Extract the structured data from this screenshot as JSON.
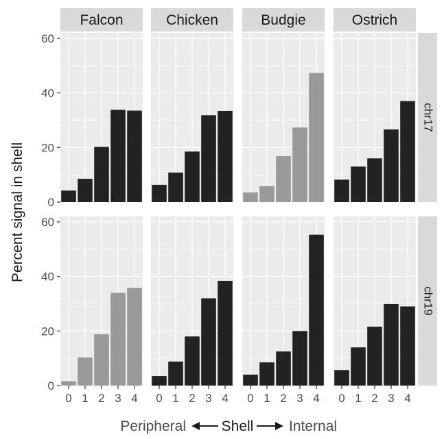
{
  "chart_data": {
    "type": "bar",
    "layout": "facet-grid",
    "columns": [
      "Falcon",
      "Chicken",
      "Budgie",
      "Ostrich"
    ],
    "rows": [
      "chr17",
      "chr19"
    ],
    "categories": [
      "0",
      "1",
      "2",
      "3",
      "4"
    ],
    "y_ticks": [
      "0",
      "20",
      "40",
      "60"
    ],
    "ylim": [
      0,
      62
    ],
    "ylabel": "Percent signal in shell",
    "xlabel": {
      "left": "Peripheral",
      "center": "Shell",
      "right": "Internal"
    },
    "grid": true,
    "colors": {
      "panel_bg": "#ebebeb",
      "grid": "#ffffff",
      "strip_bg": "#d9d9d9",
      "bar_dark": "#222222",
      "bar_light": "#999999",
      "text": "#4d4d4d",
      "title_text": "#1a1a1a"
    },
    "panels": [
      {
        "row": "chr17",
        "col": "Falcon",
        "values": [
          4.2,
          8.5,
          20.2,
          33.8,
          33.5
        ],
        "shade": "dark"
      },
      {
        "row": "chr17",
        "col": "Chicken",
        "values": [
          6.3,
          10.8,
          18.5,
          31.8,
          33.4
        ],
        "shade": "dark"
      },
      {
        "row": "chr17",
        "col": "Budgie",
        "values": [
          3.5,
          5.8,
          16.8,
          27.3,
          47.3
        ],
        "shade": "light"
      },
      {
        "row": "chr17",
        "col": "Ostrich",
        "values": [
          8.2,
          13.0,
          16.0,
          26.6,
          37.0
        ],
        "shade": "dark"
      },
      {
        "row": "chr19",
        "col": "Falcon",
        "values": [
          1.6,
          10.3,
          18.8,
          34.0,
          35.8
        ],
        "shade": "light"
      },
      {
        "row": "chr19",
        "col": "Chicken",
        "values": [
          3.5,
          8.8,
          18.0,
          32.0,
          38.4
        ],
        "shade": "dark"
      },
      {
        "row": "chr19",
        "col": "Budgie",
        "values": [
          4.0,
          8.5,
          12.5,
          20.0,
          55.3
        ],
        "shade": "dark"
      },
      {
        "row": "chr19",
        "col": "Ostrich",
        "values": [
          5.7,
          14.0,
          21.6,
          29.9,
          29.0
        ],
        "shade": "dark"
      }
    ]
  }
}
